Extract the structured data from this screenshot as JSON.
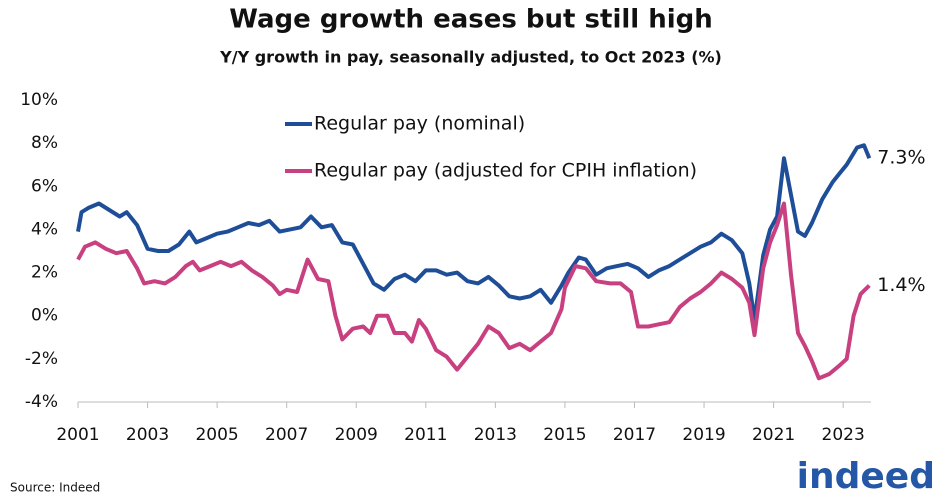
{
  "chart_data": {
    "type": "line",
    "title": "Wage growth eases but still high",
    "subtitle": "Y/Y growth in pay, seasonally adjusted, to Oct 2023 (%)",
    "source": "Source: Indeed",
    "logo": "indeed",
    "legend": "top",
    "xlim": [
      2001,
      2023.8
    ],
    "xticks": [
      2001,
      2003,
      2005,
      2007,
      2009,
      2011,
      2013,
      2015,
      2017,
      2019,
      2021,
      2023
    ],
    "ylim": [
      -4,
      10
    ],
    "yticks": [
      {
        "value": -4,
        "label": "-4%"
      },
      {
        "value": -2,
        "label": "-2%"
      },
      {
        "value": 0,
        "label": "0%"
      },
      {
        "value": 2,
        "label": "2%"
      },
      {
        "value": 4,
        "label": "4%"
      },
      {
        "value": 6,
        "label": "6%"
      },
      {
        "value": 8,
        "label": "8%"
      },
      {
        "value": 10,
        "label": "10%"
      }
    ],
    "annotations": [
      "7.3%",
      "1.4%"
    ],
    "series": [
      {
        "name": "Regular pay (nominal)",
        "color": "#1f4e99",
        "x": [
          2001.0,
          2001.1,
          2001.3,
          2001.6,
          2001.9,
          2002.2,
          2002.4,
          2002.7,
          2003.0,
          2003.3,
          2003.6,
          2003.9,
          2004.2,
          2004.4,
          2004.7,
          2005.0,
          2005.3,
          2005.6,
          2005.9,
          2006.2,
          2006.5,
          2006.8,
          2007.1,
          2007.4,
          2007.7,
          2008.0,
          2008.3,
          2008.6,
          2008.9,
          2009.2,
          2009.5,
          2009.8,
          2010.1,
          2010.4,
          2010.7,
          2011.0,
          2011.3,
          2011.6,
          2011.9,
          2012.2,
          2012.5,
          2012.8,
          2013.1,
          2013.4,
          2013.7,
          2014.0,
          2014.3,
          2014.6,
          2014.9,
          2015.1,
          2015.4,
          2015.6,
          2015.9,
          2016.2,
          2016.5,
          2016.8,
          2017.1,
          2017.4,
          2017.7,
          2018.0,
          2018.3,
          2018.6,
          2018.9,
          2019.2,
          2019.5,
          2019.8,
          2020.1,
          2020.3,
          2020.45,
          2020.7,
          2020.9,
          2021.1,
          2021.3,
          2021.5,
          2021.7,
          2021.9,
          2022.1,
          2022.4,
          2022.7,
          2022.9,
          2023.1,
          2023.4,
          2023.6,
          2023.75
        ],
        "values": [
          3.9,
          4.8,
          5.0,
          5.2,
          4.9,
          4.6,
          4.8,
          4.2,
          3.1,
          3.0,
          3.0,
          3.3,
          3.9,
          3.4,
          3.6,
          3.8,
          3.9,
          4.1,
          4.3,
          4.2,
          4.4,
          3.9,
          4.0,
          4.1,
          4.6,
          4.1,
          4.2,
          3.4,
          3.3,
          2.4,
          1.5,
          1.2,
          1.7,
          1.9,
          1.6,
          2.1,
          2.1,
          1.9,
          2.0,
          1.6,
          1.5,
          1.8,
          1.4,
          0.9,
          0.8,
          0.9,
          1.2,
          0.6,
          1.4,
          2.0,
          2.7,
          2.6,
          1.9,
          2.2,
          2.3,
          2.4,
          2.2,
          1.8,
          2.1,
          2.3,
          2.6,
          2.9,
          3.2,
          3.4,
          3.8,
          3.5,
          2.9,
          1.5,
          -0.2,
          2.8,
          4.0,
          4.6,
          7.3,
          5.6,
          3.9,
          3.7,
          4.3,
          5.4,
          6.2,
          6.6,
          7.0,
          7.8,
          7.9,
          7.3
        ]
      },
      {
        "name": "Regular pay (adjusted for CPIH inflation)",
        "color": "#c8407f",
        "x": [
          2001.0,
          2001.2,
          2001.5,
          2001.8,
          2002.1,
          2002.4,
          2002.7,
          2002.9,
          2003.2,
          2003.5,
          2003.8,
          2004.1,
          2004.3,
          2004.5,
          2004.8,
          2005.1,
          2005.4,
          2005.7,
          2006.0,
          2006.3,
          2006.6,
          2006.8,
          2007.0,
          2007.3,
          2007.6,
          2007.9,
          2008.2,
          2008.4,
          2008.6,
          2008.9,
          2009.2,
          2009.4,
          2009.6,
          2009.9,
          2010.1,
          2010.4,
          2010.6,
          2010.8,
          2011.0,
          2011.3,
          2011.6,
          2011.9,
          2012.2,
          2012.5,
          2012.8,
          2013.1,
          2013.4,
          2013.7,
          2014.0,
          2014.3,
          2014.6,
          2014.9,
          2015.0,
          2015.3,
          2015.6,
          2015.9,
          2016.3,
          2016.6,
          2016.9,
          2017.1,
          2017.4,
          2017.7,
          2018.0,
          2018.3,
          2018.6,
          2018.9,
          2019.2,
          2019.5,
          2019.8,
          2020.1,
          2020.3,
          2020.45,
          2020.7,
          2020.9,
          2021.1,
          2021.3,
          2021.5,
          2021.7,
          2021.9,
          2022.1,
          2022.3,
          2022.6,
          2022.9,
          2023.1,
          2023.3,
          2023.5,
          2023.75
        ],
        "values": [
          2.6,
          3.2,
          3.4,
          3.1,
          2.9,
          3.0,
          2.2,
          1.5,
          1.6,
          1.5,
          1.8,
          2.3,
          2.5,
          2.1,
          2.3,
          2.5,
          2.3,
          2.5,
          2.1,
          1.8,
          1.4,
          1.0,
          1.2,
          1.1,
          2.6,
          1.7,
          1.6,
          0.0,
          -1.1,
          -0.6,
          -0.5,
          -0.8,
          0.0,
          0.0,
          -0.8,
          -0.8,
          -1.2,
          -0.2,
          -0.6,
          -1.6,
          -1.9,
          -2.5,
          -1.9,
          -1.3,
          -0.5,
          -0.8,
          -1.5,
          -1.3,
          -1.6,
          -1.2,
          -0.8,
          0.3,
          1.3,
          2.3,
          2.2,
          1.6,
          1.5,
          1.5,
          1.1,
          -0.5,
          -0.5,
          -0.4,
          -0.3,
          0.4,
          0.8,
          1.1,
          1.5,
          2.0,
          1.7,
          1.3,
          0.6,
          -0.9,
          2.2,
          3.4,
          4.2,
          5.2,
          1.9,
          -0.8,
          -1.4,
          -2.1,
          -2.9,
          -2.7,
          -2.3,
          -2.0,
          0.0,
          1.0,
          1.4
        ]
      }
    ]
  }
}
